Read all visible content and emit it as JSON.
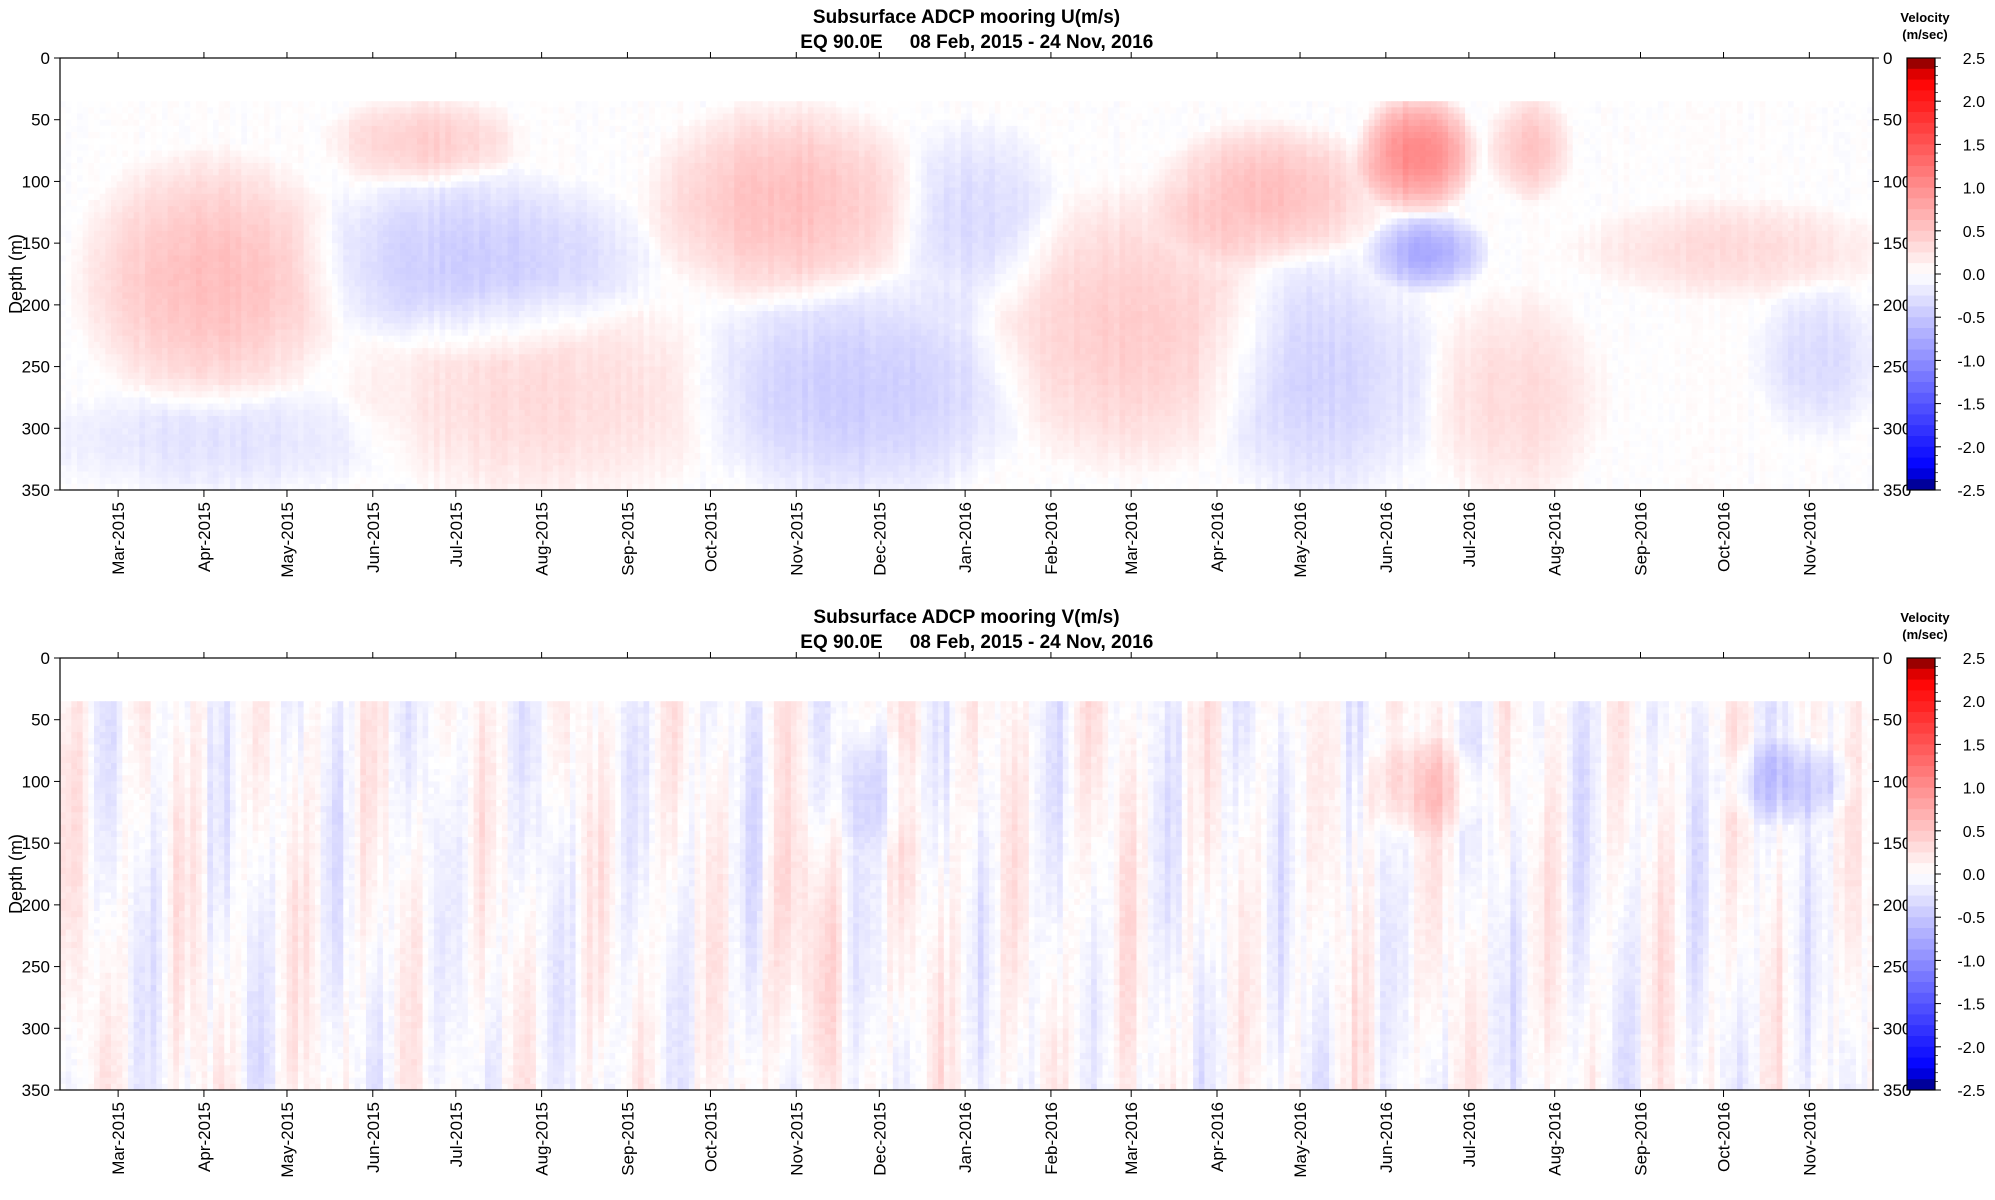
{
  "chart_data": [
    {
      "type": "heatmap",
      "variable": "U",
      "title": "Subsurface ADCP mooring U(m/s)",
      "subtitle_location": "EQ 90.0E",
      "subtitle_range": "08 Feb, 2015 - 24 Nov, 2016",
      "xlabel": "",
      "ylabel": "Depth (m)",
      "x_range": [
        "2015-02-08",
        "2016-11-24"
      ],
      "x_ticks": [
        "Mar-2015",
        "Apr-2015",
        "May-2015",
        "Jun-2015",
        "Jul-2015",
        "Aug-2015",
        "Sep-2015",
        "Oct-2015",
        "Nov-2015",
        "Dec-2015",
        "Jan-2016",
        "Feb-2016",
        "Mar-2016",
        "Apr-2016",
        "May-2016",
        "Jun-2016",
        "Jul-2016",
        "Aug-2016",
        "Sep-2016",
        "Oct-2016",
        "Nov-2016"
      ],
      "y_range": [
        0,
        350
      ],
      "y_inverted": true,
      "y_ticks": [
        "0",
        "50",
        "100",
        "150",
        "200",
        "250",
        "300",
        "350"
      ],
      "data_top_depth": 35,
      "colorbar": {
        "title_line1": "Velocity",
        "title_line2": "(m/sec)",
        "range": [
          -2.5,
          2.5
        ],
        "ticks": [
          "2.5",
          "2.0",
          "1.5",
          "1.0",
          "0.5",
          "0.0",
          "-0.5",
          "-1.0",
          "-1.5",
          "-2.0",
          "-2.5"
        ],
        "colors": {
          "negative_max": "#00007a",
          "negative": "#0000ff",
          "zero": "#ffffff",
          "positive": "#ff0000",
          "positive_max": "#7a0000"
        }
      },
      "features": [
        {
          "start": "2015-02-20",
          "end": "2015-05-15",
          "top": 90,
          "bottom": 270,
          "value": 0.45
        },
        {
          "start": "2015-05-20",
          "end": "2015-07-20",
          "top": 35,
          "bottom": 100,
          "value": 0.35
        },
        {
          "start": "2015-05-15",
          "end": "2015-09-01",
          "top": 100,
          "bottom": 230,
          "value": -0.35
        },
        {
          "start": "2015-06-01",
          "end": "2015-09-30",
          "top": 200,
          "bottom": 350,
          "value": 0.25
        },
        {
          "start": "2015-02-08",
          "end": "2015-06-01",
          "top": 270,
          "bottom": 350,
          "value": -0.2
        },
        {
          "start": "2015-09-15",
          "end": "2015-12-10",
          "top": 45,
          "bottom": 190,
          "value": 0.45
        },
        {
          "start": "2015-10-01",
          "end": "2016-01-15",
          "top": 190,
          "bottom": 350,
          "value": -0.35
        },
        {
          "start": "2015-12-10",
          "end": "2016-02-01",
          "top": 60,
          "bottom": 200,
          "value": -0.25
        },
        {
          "start": "2016-01-15",
          "end": "2016-04-15",
          "top": 120,
          "bottom": 320,
          "value": 0.35
        },
        {
          "start": "2016-03-15",
          "end": "2016-05-25",
          "top": 60,
          "bottom": 160,
          "value": 0.45
        },
        {
          "start": "2016-04-01",
          "end": "2016-06-15",
          "top": 170,
          "bottom": 350,
          "value": -0.3
        },
        {
          "start": "2016-05-25",
          "end": "2016-07-01",
          "top": 35,
          "bottom": 120,
          "value": 0.85
        },
        {
          "start": "2016-05-28",
          "end": "2016-07-05",
          "top": 130,
          "bottom": 185,
          "value": -0.6
        },
        {
          "start": "2016-06-20",
          "end": "2016-08-15",
          "top": 200,
          "bottom": 350,
          "value": 0.25
        },
        {
          "start": "2016-07-10",
          "end": "2016-08-05",
          "top": 35,
          "bottom": 110,
          "value": 0.4
        },
        {
          "start": "2016-08-15",
          "end": "2016-11-24",
          "top": 120,
          "bottom": 190,
          "value": 0.25
        },
        {
          "start": "2016-10-15",
          "end": "2016-11-24",
          "top": 190,
          "bottom": 300,
          "value": -0.25
        }
      ]
    },
    {
      "type": "heatmap",
      "variable": "V",
      "title": "Subsurface ADCP mooring V(m/s)",
      "subtitle_location": "EQ 90.0E",
      "subtitle_range": "08 Feb, 2015 - 24 Nov, 2016",
      "xlabel": "",
      "ylabel": "Depth (m)",
      "x_range": [
        "2015-02-08",
        "2016-11-24"
      ],
      "x_ticks": [
        "Mar-2015",
        "Apr-2015",
        "May-2015",
        "Jun-2015",
        "Jul-2015",
        "Aug-2015",
        "Sep-2015",
        "Oct-2015",
        "Nov-2015",
        "Dec-2015",
        "Jan-2016",
        "Feb-2016",
        "Mar-2016",
        "Apr-2016",
        "May-2016",
        "Jun-2016",
        "Jul-2016",
        "Aug-2016",
        "Sep-2016",
        "Oct-2016",
        "Nov-2016"
      ],
      "y_range": [
        0,
        350
      ],
      "y_inverted": true,
      "y_ticks": [
        "0",
        "50",
        "100",
        "150",
        "200",
        "250",
        "300",
        "350"
      ],
      "data_top_depth": 35,
      "colorbar": {
        "title_line1": "Velocity",
        "title_line2": "(m/sec)",
        "range": [
          -2.5,
          2.5
        ],
        "ticks": [
          "2.5",
          "2.0",
          "1.5",
          "1.0",
          "0.5",
          "0.0",
          "-0.5",
          "-1.0",
          "-1.5",
          "-2.0",
          "-2.5"
        ],
        "colors": {
          "negative_max": "#00007a",
          "negative": "#0000ff",
          "zero": "#ffffff",
          "positive": "#ff0000",
          "positive_max": "#7a0000"
        }
      },
      "features": [
        {
          "start": "2016-05-25",
          "end": "2016-07-05",
          "top": 70,
          "bottom": 140,
          "value": 0.3
        },
        {
          "start": "2016-10-01",
          "end": "2016-11-15",
          "top": 70,
          "bottom": 130,
          "value": -0.35
        },
        {
          "start": "2015-10-20",
          "end": "2015-11-15",
          "top": 130,
          "bottom": 350,
          "value": 0.2
        },
        {
          "start": "2015-11-15",
          "end": "2015-12-15",
          "top": 60,
          "bottom": 150,
          "value": -0.2
        }
      ]
    }
  ]
}
